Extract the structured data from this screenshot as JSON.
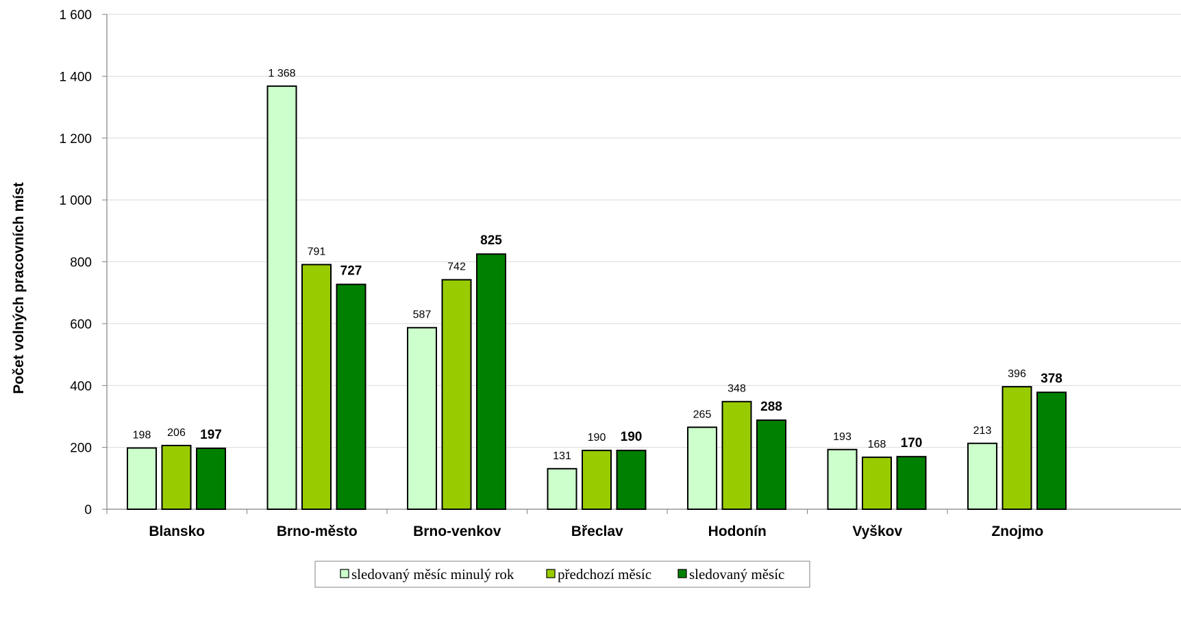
{
  "chart_data": {
    "type": "bar",
    "title": "",
    "xlabel": "",
    "ylabel": "Počet volných pracovních míst",
    "ylim": [
      0,
      1600
    ],
    "yticks": [
      0,
      200,
      400,
      600,
      800,
      1000,
      1200,
      1400,
      1600
    ],
    "ytick_labels": [
      "0",
      "200",
      "400",
      "600",
      "800",
      "1 000",
      "1 200",
      "1 400",
      "1 600"
    ],
    "grid": true,
    "legend_position": "bottom",
    "categories": [
      "Blansko",
      "Brno-město",
      "Brno-venkov",
      "Břeclav",
      "Hodonín",
      "Vyškov",
      "Znojmo"
    ],
    "series": [
      {
        "name": "sledovaný měsíc minulý rok",
        "color": "#ccffcc",
        "values": [
          198,
          1368,
          587,
          131,
          265,
          193,
          213
        ],
        "labels": [
          "198",
          "1 368",
          "587",
          "131",
          "265",
          "193",
          "213"
        ],
        "bold_labels": false
      },
      {
        "name": "předchozí měsíc",
        "color": "#99cc00",
        "values": [
          206,
          791,
          742,
          190,
          348,
          168,
          396
        ],
        "labels": [
          "206",
          "791",
          "742",
          "190",
          "348",
          "168",
          "396"
        ],
        "bold_labels": false
      },
      {
        "name": "sledovaný měsíc",
        "color": "#008000",
        "values": [
          197,
          727,
          825,
          190,
          288,
          170,
          378
        ],
        "labels": [
          "197",
          "727",
          "825",
          "190",
          "288",
          "170",
          "378"
        ],
        "bold_labels": true
      }
    ]
  }
}
